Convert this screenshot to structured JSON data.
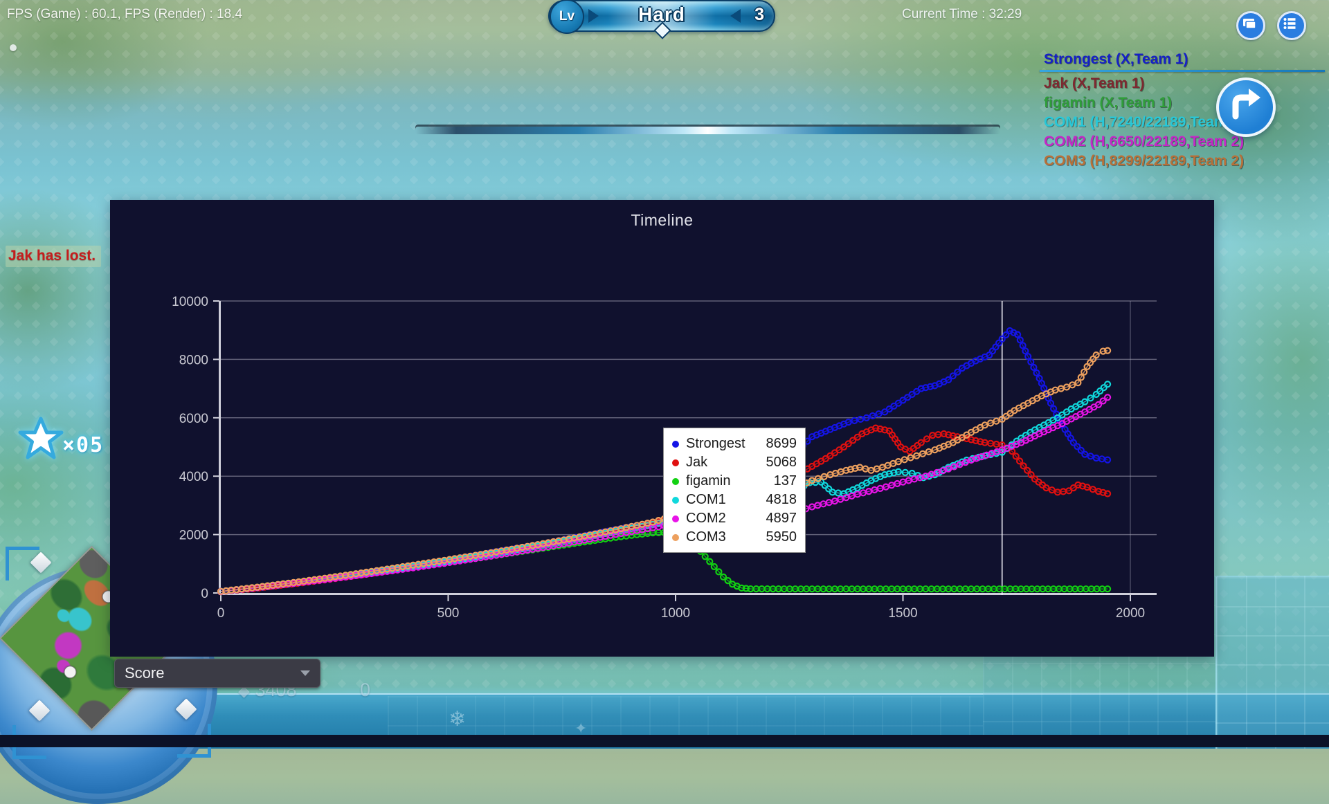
{
  "hud": {
    "fps_text": "FPS (Game) : 60.1, FPS (Render) : 18.4",
    "current_time_label": "Current Time : 32:29",
    "level_badge": {
      "lv_label": "Lv",
      "difficulty": "Hard",
      "level": "3"
    },
    "lost_message": "Jak has lost.",
    "star_count": "×05",
    "resources": {
      "gems": "3408",
      "other": "0"
    },
    "score_dropdown": {
      "value": "Score"
    },
    "players": [
      {
        "name": "Strongest (X,Team 1)",
        "color": "#1520c8",
        "selected": true
      },
      {
        "name": "Jak (X,Team 1)",
        "color": "#7e2830",
        "selected": false
      },
      {
        "name": "figamin (X,Team 1)",
        "color": "#2f9e3a",
        "selected": false
      },
      {
        "name": "COM1 (H,7240/22189,Team 2)",
        "color": "#28c8d8",
        "selected": false
      },
      {
        "name": "COM2 (H,6650/22189,Team 2)",
        "color": "#c428c8",
        "selected": false
      },
      {
        "name": "COM3 (H,8299/22189,Team 2)",
        "color": "#b87038",
        "selected": false
      }
    ]
  },
  "chart_data": {
    "type": "line",
    "title": "Timeline",
    "xlabel": "",
    "ylabel": "",
    "xlim": [
      0,
      2000
    ],
    "ylim": [
      0,
      10000
    ],
    "x_ticks": [
      0,
      500,
      1000,
      1500,
      2000
    ],
    "y_ticks": [
      0,
      2000,
      4000,
      6000,
      8000,
      10000
    ],
    "grid": true,
    "legend_position": "center",
    "cursor_x": 1718,
    "series": [
      {
        "name": "Strongest",
        "color": "#1414e6",
        "legend_value": "8699",
        "points": [
          [
            0,
            60
          ],
          [
            60,
            140
          ],
          [
            120,
            260
          ],
          [
            180,
            380
          ],
          [
            240,
            500
          ],
          [
            300,
            640
          ],
          [
            360,
            780
          ],
          [
            420,
            930
          ],
          [
            480,
            1080
          ],
          [
            540,
            1230
          ],
          [
            600,
            1390
          ],
          [
            660,
            1550
          ],
          [
            720,
            1720
          ],
          [
            780,
            1900
          ],
          [
            840,
            2080
          ],
          [
            900,
            2260
          ],
          [
            950,
            2400
          ],
          [
            1000,
            2650
          ],
          [
            1040,
            3000
          ],
          [
            1080,
            3450
          ],
          [
            1130,
            3850
          ],
          [
            1180,
            4150
          ],
          [
            1230,
            4500
          ],
          [
            1270,
            4900
          ],
          [
            1300,
            5350
          ],
          [
            1340,
            5600
          ],
          [
            1380,
            5850
          ],
          [
            1420,
            6000
          ],
          [
            1460,
            6200
          ],
          [
            1500,
            6600
          ],
          [
            1540,
            7000
          ],
          [
            1570,
            7100
          ],
          [
            1600,
            7300
          ],
          [
            1630,
            7700
          ],
          [
            1660,
            7950
          ],
          [
            1690,
            8150
          ],
          [
            1718,
            8699
          ],
          [
            1735,
            8980
          ],
          [
            1752,
            8850
          ],
          [
            1775,
            8100
          ],
          [
            1800,
            7350
          ],
          [
            1825,
            6500
          ],
          [
            1850,
            5750
          ],
          [
            1875,
            5150
          ],
          [
            1900,
            4750
          ],
          [
            1925,
            4620
          ],
          [
            1950,
            4560
          ]
        ]
      },
      {
        "name": "Jak",
        "color": "#e01010",
        "legend_value": "5068",
        "points": [
          [
            0,
            50
          ],
          [
            60,
            130
          ],
          [
            120,
            240
          ],
          [
            180,
            350
          ],
          [
            240,
            470
          ],
          [
            300,
            600
          ],
          [
            360,
            740
          ],
          [
            420,
            880
          ],
          [
            480,
            1030
          ],
          [
            540,
            1180
          ],
          [
            600,
            1340
          ],
          [
            660,
            1500
          ],
          [
            720,
            1670
          ],
          [
            780,
            1850
          ],
          [
            840,
            2030
          ],
          [
            900,
            2220
          ],
          [
            950,
            2380
          ],
          [
            1000,
            2600
          ],
          [
            1050,
            2850
          ],
          [
            1100,
            3100
          ],
          [
            1150,
            3300
          ],
          [
            1200,
            3550
          ],
          [
            1250,
            3950
          ],
          [
            1290,
            4250
          ],
          [
            1330,
            4600
          ],
          [
            1370,
            5000
          ],
          [
            1410,
            5450
          ],
          [
            1440,
            5650
          ],
          [
            1470,
            5550
          ],
          [
            1495,
            5000
          ],
          [
            1515,
            4850
          ],
          [
            1540,
            5150
          ],
          [
            1565,
            5400
          ],
          [
            1590,
            5450
          ],
          [
            1620,
            5350
          ],
          [
            1650,
            5250
          ],
          [
            1680,
            5150
          ],
          [
            1718,
            5068
          ],
          [
            1740,
            4850
          ],
          [
            1765,
            4350
          ],
          [
            1790,
            3900
          ],
          [
            1815,
            3600
          ],
          [
            1840,
            3450
          ],
          [
            1865,
            3500
          ],
          [
            1885,
            3700
          ],
          [
            1905,
            3620
          ],
          [
            1930,
            3480
          ],
          [
            1950,
            3400
          ]
        ]
      },
      {
        "name": "figamin",
        "color": "#12d112",
        "legend_value": "137",
        "points": [
          [
            0,
            40
          ],
          [
            80,
            180
          ],
          [
            160,
            330
          ],
          [
            240,
            490
          ],
          [
            320,
            650
          ],
          [
            400,
            820
          ],
          [
            480,
            1000
          ],
          [
            560,
            1180
          ],
          [
            640,
            1370
          ],
          [
            720,
            1560
          ],
          [
            800,
            1750
          ],
          [
            880,
            1930
          ],
          [
            950,
            2060
          ],
          [
            1000,
            2080
          ],
          [
            1025,
            1900
          ],
          [
            1045,
            1600
          ],
          [
            1065,
            1250
          ],
          [
            1085,
            900
          ],
          [
            1105,
            550
          ],
          [
            1125,
            300
          ],
          [
            1145,
            170
          ],
          [
            1165,
            140
          ],
          [
            1300,
            137
          ],
          [
            1500,
            137
          ],
          [
            1700,
            137
          ],
          [
            1950,
            137
          ]
        ]
      },
      {
        "name": "COM1",
        "color": "#10d8dc",
        "legend_value": "4818",
        "points": [
          [
            0,
            50
          ],
          [
            80,
            190
          ],
          [
            160,
            340
          ],
          [
            240,
            500
          ],
          [
            320,
            670
          ],
          [
            400,
            850
          ],
          [
            480,
            1040
          ],
          [
            560,
            1240
          ],
          [
            640,
            1450
          ],
          [
            720,
            1670
          ],
          [
            800,
            1900
          ],
          [
            880,
            2140
          ],
          [
            950,
            2350
          ],
          [
            1000,
            2500
          ],
          [
            1040,
            2700
          ],
          [
            1075,
            3100
          ],
          [
            1095,
            3250
          ],
          [
            1115,
            2900
          ],
          [
            1140,
            2750
          ],
          [
            1170,
            2820
          ],
          [
            1200,
            2980
          ],
          [
            1240,
            3200
          ],
          [
            1270,
            3550
          ],
          [
            1295,
            3780
          ],
          [
            1320,
            3800
          ],
          [
            1345,
            3450
          ],
          [
            1370,
            3400
          ],
          [
            1400,
            3600
          ],
          [
            1430,
            3850
          ],
          [
            1460,
            4050
          ],
          [
            1490,
            4150
          ],
          [
            1520,
            4100
          ],
          [
            1545,
            3950
          ],
          [
            1570,
            4050
          ],
          [
            1600,
            4300
          ],
          [
            1640,
            4550
          ],
          [
            1680,
            4700
          ],
          [
            1718,
            4818
          ],
          [
            1750,
            5200
          ],
          [
            1780,
            5500
          ],
          [
            1810,
            5750
          ],
          [
            1840,
            6000
          ],
          [
            1870,
            6300
          ],
          [
            1900,
            6550
          ],
          [
            1925,
            6800
          ],
          [
            1950,
            7150
          ]
        ]
      },
      {
        "name": "COM2",
        "color": "#e814e8",
        "legend_value": "4897",
        "points": [
          [
            0,
            45
          ],
          [
            80,
            180
          ],
          [
            160,
            330
          ],
          [
            240,
            480
          ],
          [
            320,
            640
          ],
          [
            400,
            810
          ],
          [
            480,
            990
          ],
          [
            560,
            1180
          ],
          [
            640,
            1380
          ],
          [
            720,
            1590
          ],
          [
            800,
            1810
          ],
          [
            880,
            2040
          ],
          [
            950,
            2230
          ],
          [
            1000,
            2380
          ],
          [
            1050,
            2550
          ],
          [
            1090,
            2700
          ],
          [
            1120,
            2750
          ],
          [
            1150,
            2500
          ],
          [
            1180,
            2450
          ],
          [
            1220,
            2600
          ],
          [
            1260,
            2750
          ],
          [
            1300,
            2950
          ],
          [
            1350,
            3150
          ],
          [
            1400,
            3380
          ],
          [
            1450,
            3580
          ],
          [
            1500,
            3800
          ],
          [
            1550,
            4000
          ],
          [
            1600,
            4250
          ],
          [
            1650,
            4550
          ],
          [
            1718,
            4897
          ],
          [
            1760,
            5150
          ],
          [
            1800,
            5450
          ],
          [
            1850,
            5800
          ],
          [
            1900,
            6200
          ],
          [
            1930,
            6450
          ],
          [
            1950,
            6700
          ]
        ]
      },
      {
        "name": "COM3",
        "color": "#eda05e",
        "legend_value": "5950",
        "points": [
          [
            0,
            55
          ],
          [
            80,
            200
          ],
          [
            160,
            360
          ],
          [
            240,
            530
          ],
          [
            320,
            710
          ],
          [
            400,
            900
          ],
          [
            480,
            1090
          ],
          [
            560,
            1290
          ],
          [
            640,
            1500
          ],
          [
            720,
            1720
          ],
          [
            800,
            1950
          ],
          [
            880,
            2200
          ],
          [
            950,
            2430
          ],
          [
            1000,
            2650
          ],
          [
            1040,
            2950
          ],
          [
            1080,
            3250
          ],
          [
            1120,
            3500
          ],
          [
            1155,
            3750
          ],
          [
            1185,
            3900
          ],
          [
            1210,
            3600
          ],
          [
            1235,
            3450
          ],
          [
            1265,
            3600
          ],
          [
            1300,
            3850
          ],
          [
            1340,
            4050
          ],
          [
            1375,
            4200
          ],
          [
            1405,
            4300
          ],
          [
            1430,
            4200
          ],
          [
            1455,
            4300
          ],
          [
            1490,
            4500
          ],
          [
            1530,
            4700
          ],
          [
            1570,
            4900
          ],
          [
            1610,
            5150
          ],
          [
            1650,
            5500
          ],
          [
            1680,
            5750
          ],
          [
            1718,
            5950
          ],
          [
            1745,
            6250
          ],
          [
            1775,
            6500
          ],
          [
            1805,
            6750
          ],
          [
            1835,
            6950
          ],
          [
            1860,
            7050
          ],
          [
            1885,
            7200
          ],
          [
            1905,
            7750
          ],
          [
            1925,
            8150
          ],
          [
            1940,
            8280
          ],
          [
            1950,
            8300
          ]
        ]
      }
    ]
  }
}
